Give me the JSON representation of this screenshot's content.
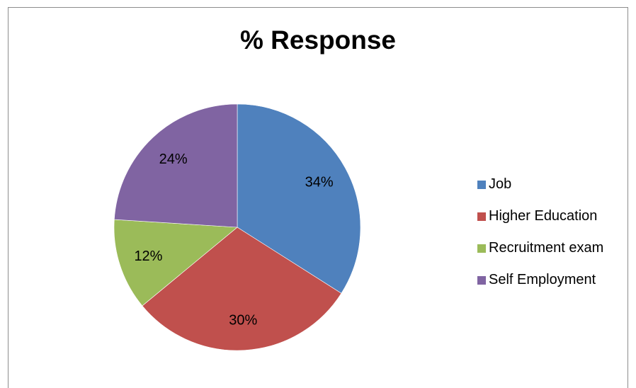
{
  "chart_data": {
    "type": "pie",
    "title": "% Response",
    "slices": [
      {
        "label": "Job",
        "value": 34,
        "data_label": "34%",
        "color": "#4F81BD"
      },
      {
        "label": "Higher Education",
        "value": 30,
        "data_label": "30%",
        "color": "#C0504D"
      },
      {
        "label": "Recruitment exam",
        "value": 12,
        "data_label": "12%",
        "color": "#9BBB59"
      },
      {
        "label": "Self Employment",
        "value": 24,
        "data_label": "24%",
        "color": "#8064A2"
      }
    ],
    "legend_position": "right"
  }
}
